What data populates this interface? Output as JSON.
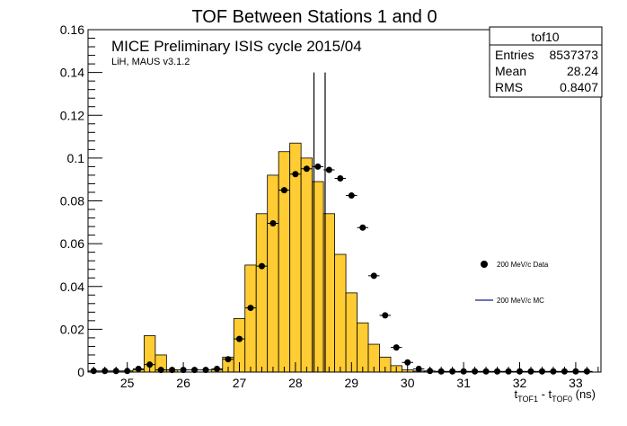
{
  "chart_data": {
    "type": "histogram",
    "title": "TOF Between Stations 1 and 0",
    "annotations": {
      "main": "MICE Preliminary ISIS cycle 2015/04",
      "sub": "LiH, MAUS v3.1.2"
    },
    "xlabel": {
      "t1": "t",
      "s1": "TOF1",
      "mid": " - t",
      "s2": "TOF0",
      "unit": " (ns)"
    },
    "ylabel": "",
    "xlim": [
      24.3,
      33.45
    ],
    "ylim": [
      0,
      0.16
    ],
    "x_ticks": [
      25,
      26,
      27,
      28,
      29,
      30,
      31,
      32,
      33
    ],
    "y_ticks": [
      0,
      0.02,
      0.04,
      0.06,
      0.08,
      0.1,
      0.12,
      0.14,
      0.16
    ],
    "y_tick_labels": [
      "0",
      "0.02",
      "0.04",
      "0.06",
      "0.08",
      "0.1",
      "0.12",
      "0.14",
      "0.16"
    ],
    "bin_width": 0.2,
    "stats": {
      "name": "tof10",
      "rows": [
        {
          "label": "Entries",
          "value": "8537373"
        },
        {
          "label": "Mean",
          "value": "28.24"
        },
        {
          "label": "RMS",
          "value": "0.8407"
        }
      ]
    },
    "legend": {
      "data_label": "200 MeV/c Data",
      "mc_label": "200 MeV/c MC",
      "position": "right"
    },
    "cut_lines_x": [
      28.33,
      28.53
    ],
    "series": [
      {
        "name": "200 MeV/c MC",
        "style": "filled-histogram",
        "color": "#ffcc33",
        "x": [
          24.3,
          24.5,
          24.7,
          24.9,
          25.1,
          25.3,
          25.5,
          25.7,
          25.9,
          26.1,
          26.3,
          26.5,
          26.7,
          26.9,
          27.1,
          27.3,
          27.5,
          27.7,
          27.9,
          28.1,
          28.3,
          28.5,
          28.7,
          28.9,
          29.1,
          29.3,
          29.5,
          29.7,
          29.9,
          30.1,
          30.3,
          30.5,
          30.7,
          30.9,
          31.1,
          31.3,
          31.5,
          31.7,
          31.9,
          32.1,
          32.3,
          32.5,
          32.7,
          32.9,
          33.1
        ],
        "values": [
          0,
          0,
          0,
          0,
          0.001,
          0.017,
          0.008,
          0.001,
          0,
          0,
          0,
          0.001,
          0.007,
          0.025,
          0.05,
          0.074,
          0.092,
          0.103,
          0.107,
          0.1,
          0.089,
          0.074,
          0.055,
          0.037,
          0.023,
          0.013,
          0.007,
          0.003,
          0.001,
          0.0005,
          0,
          0,
          0,
          0,
          0,
          0,
          0,
          0,
          0,
          0,
          0,
          0,
          0,
          0,
          0
        ]
      },
      {
        "name": "200 MeV/c Data",
        "style": "markers",
        "color": "#000000",
        "x": [
          24.4,
          24.6,
          24.8,
          25.0,
          25.2,
          25.4,
          25.6,
          25.8,
          26.0,
          26.2,
          26.4,
          26.6,
          26.8,
          27.0,
          27.2,
          27.4,
          27.6,
          27.8,
          28.0,
          28.2,
          28.4,
          28.6,
          28.8,
          29.0,
          29.2,
          29.4,
          29.6,
          29.8,
          30.0,
          30.2,
          30.4,
          30.6,
          30.8,
          31.0,
          31.2,
          31.4,
          31.6,
          31.8,
          32.0,
          32.2,
          32.4,
          32.6,
          32.8,
          33.0,
          33.2
        ],
        "values": [
          0.0005,
          0.0005,
          0.0005,
          0.0005,
          0.0015,
          0.0035,
          0.001,
          0.001,
          0.001,
          0.001,
          0.001,
          0.0015,
          0.006,
          0.0155,
          0.03,
          0.0495,
          0.0695,
          0.085,
          0.0925,
          0.095,
          0.096,
          0.0945,
          0.0905,
          0.0825,
          0.0675,
          0.045,
          0.0265,
          0.0115,
          0.0045,
          0.0015,
          0.0005,
          0.0003,
          0.0003,
          0.0003,
          0.0003,
          0.0003,
          0.0003,
          0.0003,
          0.0003,
          0.0003,
          0.0003,
          0.0003,
          0.0003,
          0.0003,
          0.0003
        ]
      }
    ]
  }
}
